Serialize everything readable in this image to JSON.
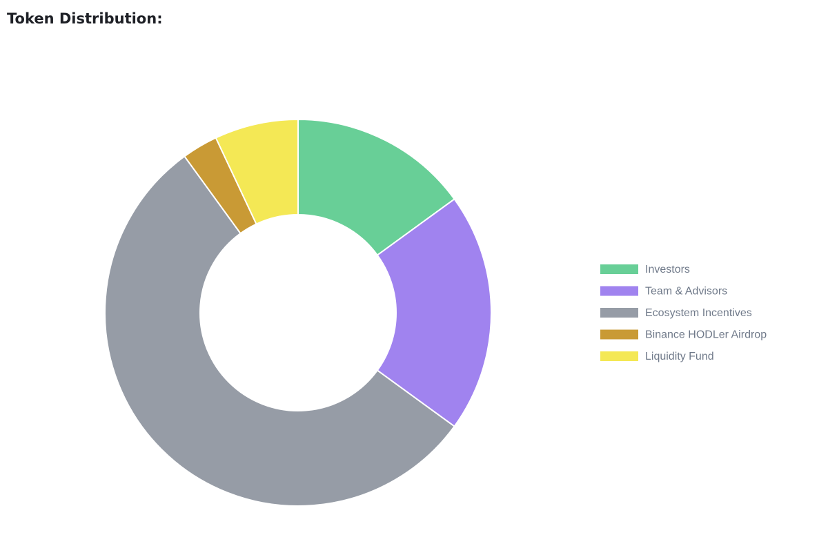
{
  "chart_data": {
    "type": "donut",
    "title": "Token Distribution:",
    "categories": [
      "Investors",
      "Team & Advisors",
      "Ecosystem Incentives",
      "Binance HODLer Airdrop",
      "Liquidity Fund"
    ],
    "values": [
      15,
      20,
      55,
      3,
      7
    ],
    "colors": [
      "#68cf97",
      "#a083ef",
      "#969ca6",
      "#c99a35",
      "#f4e855"
    ],
    "legend": "right"
  }
}
